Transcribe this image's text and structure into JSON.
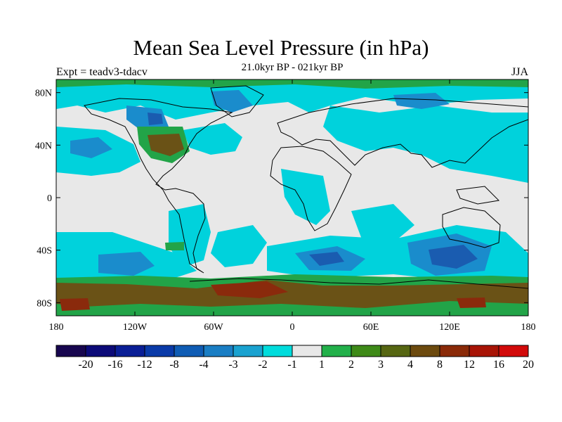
{
  "title": "Mean Sea Level Pressure (in hPa)",
  "subtitle": "21.0kyr BP - 021kyr BP",
  "left_label": "Expt = teadv3-tdacv",
  "right_label": "JJA",
  "map": {
    "lat_ticks": [
      "80N",
      "40N",
      "0",
      "40S",
      "80S"
    ],
    "lat_values": [
      80,
      40,
      0,
      -40,
      -80
    ],
    "lon_ticks": [
      "180",
      "120W",
      "60W",
      "0",
      "60E",
      "120E",
      "180"
    ],
    "lon_values": [
      -180,
      -120,
      -60,
      0,
      60,
      120,
      180
    ],
    "lon_range": [
      -180,
      180
    ],
    "lat_range": [
      -90,
      90
    ],
    "background_color": "#e8e8e8"
  },
  "colorbar": {
    "labels": [
      "-20",
      "-16",
      "-12",
      "-8",
      "-4",
      "-3",
      "-2",
      "-1",
      "1",
      "2",
      "3",
      "4",
      "8",
      "12",
      "16",
      "20"
    ],
    "colors": [
      "#17064f",
      "#0c0a78",
      "#0a1e96",
      "#0a3aa8",
      "#0f5cb4",
      "#1a7ec4",
      "#1aa2d0",
      "#00dcdc",
      "#e8e8e8",
      "#22b04a",
      "#3e8a18",
      "#566612",
      "#6c4a0e",
      "#8a2a08",
      "#a81406",
      "#d20a0a"
    ]
  }
}
